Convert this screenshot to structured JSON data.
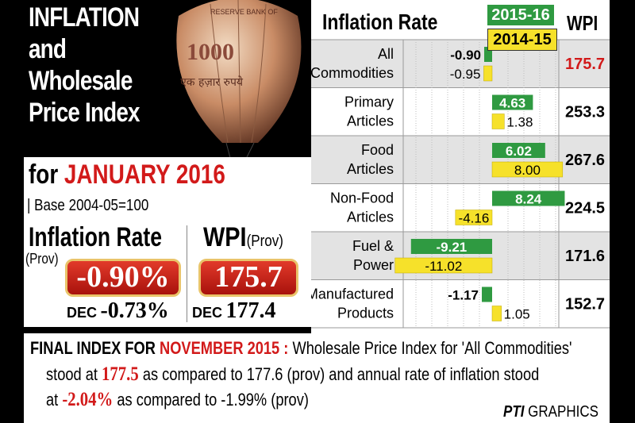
{
  "header": {
    "title_lines": [
      "INFLATION",
      "and",
      "Wholesale",
      "Price Index"
    ],
    "subtitle_prefix": "for",
    "subtitle_month": "JANUARY 2016",
    "base": "| Base 2004-05=100"
  },
  "balloon": {
    "note_text": "1000",
    "note_hindi": "एक हज़ार रुपये",
    "bank_text": "RESERVE BANK OF"
  },
  "summary": {
    "inflation_label": "Inflation Rate",
    "inflation_prov": "(Prov)",
    "inflation_value": "-0.90%",
    "inflation_dec_label": "DEC",
    "inflation_dec_value": "-0.73%",
    "wpi_label": "WPI",
    "wpi_prov": "(Prov)",
    "wpi_value": "175.7",
    "wpi_dec_label": "DEC",
    "wpi_dec_value": "177.4"
  },
  "chart_data": {
    "type": "bar",
    "title": "Inflation Rate",
    "wpi_header": "WPI",
    "categories": [
      "All Commodities",
      "Primary Articles",
      "Food Articles",
      "Non-Food Articles",
      "Fuel & Power",
      "Manufactured Products"
    ],
    "category_lines": [
      [
        "All",
        "Commodities"
      ],
      [
        "Primary",
        "Articles"
      ],
      [
        "Food",
        "Articles"
      ],
      [
        "Non-Food",
        "Articles"
      ],
      [
        "Fuel &",
        "Power"
      ],
      [
        "Manufactured",
        "Products"
      ]
    ],
    "series": [
      {
        "name": "2015-16",
        "color": "#2f9a41",
        "values": [
          -0.9,
          4.63,
          6.02,
          8.24,
          -9.21,
          -1.17
        ],
        "labels": [
          "-0.90",
          "4.63",
          "6.02",
          "8.24",
          "-9.21",
          "-1.17"
        ]
      },
      {
        "name": "2014-15",
        "color": "#f6e12a",
        "values": [
          -0.95,
          1.38,
          8.0,
          -4.16,
          -11.02,
          1.05
        ],
        "labels": [
          "-0.95",
          "1.38",
          "8.00",
          "-4.16",
          "-11.02",
          "1.05"
        ]
      }
    ],
    "wpi": [
      "175.7",
      "253.3",
      "267.6",
      "224.5",
      "171.6",
      "152.7"
    ],
    "wpi_highlight_color": "#d21a1a",
    "xlim": [
      -12,
      10
    ]
  },
  "final": {
    "heading": "FINAL INDEX FOR",
    "heading_month": "NOVEMBER 2015 :",
    "text1": "Wholesale Price Index for 'All Commodities'",
    "text2a": "stood at",
    "value1": "177.5",
    "text2b": "as compared to 177.6 (prov) and annual rate of inflation stood",
    "text3a": "at",
    "value2": "-2.04%",
    "text3b": "as compared to -1.99% (prov)"
  },
  "credit": {
    "pti": "PTI",
    "graphics": "GRAPHICS"
  }
}
